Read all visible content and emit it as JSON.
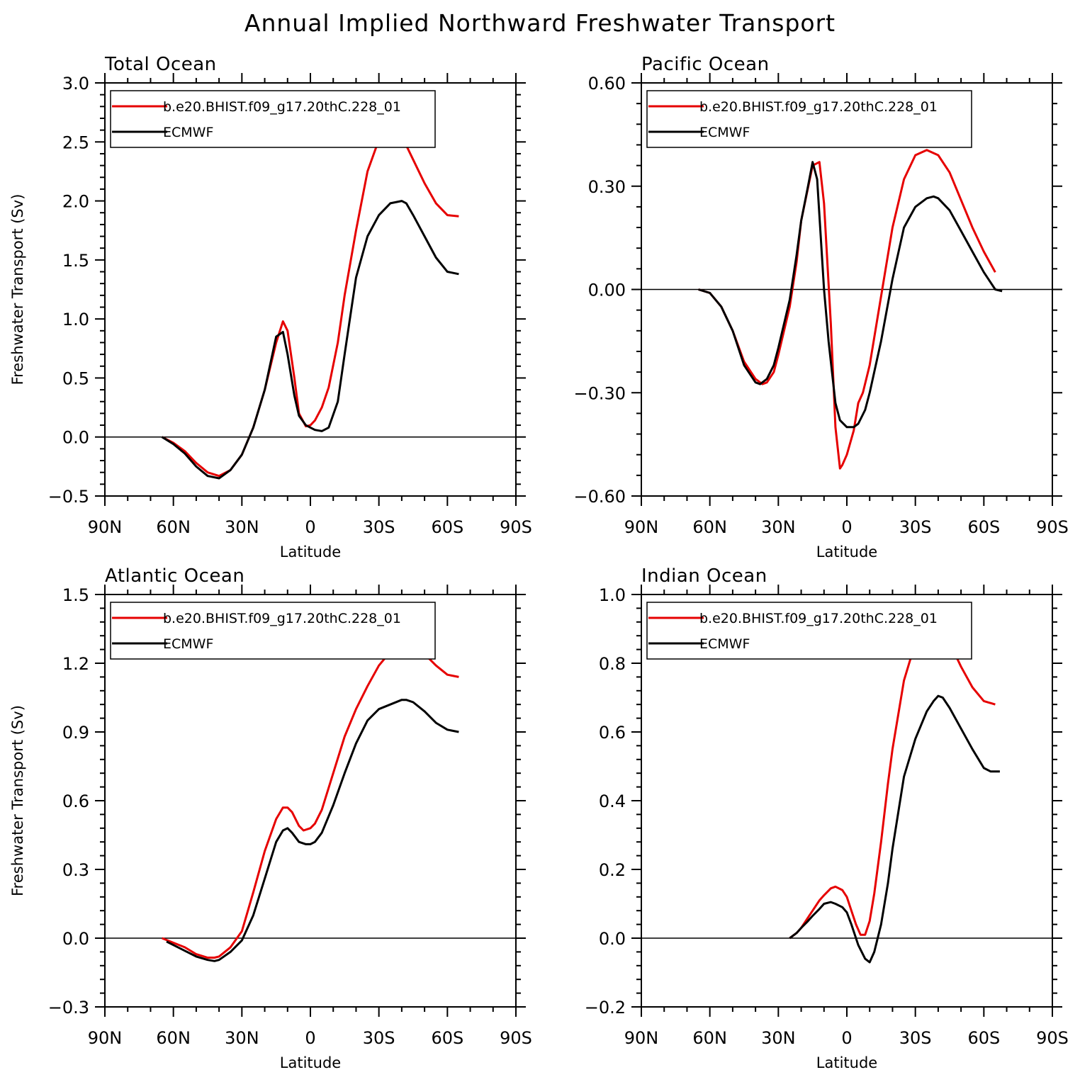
{
  "title": "Annual Implied Northward Freshwater Transport",
  "colors": {
    "model": "#e60000",
    "obs": "#000000"
  },
  "chart_data": [
    {
      "type": "line",
      "panel_title": "Total Ocean",
      "xlabel": "Latitude",
      "ylabel": "Freshwater Transport (Sv)",
      "xlim": [
        90,
        -90
      ],
      "ylim": [
        -0.5,
        3.0
      ],
      "x_ticks": [
        90,
        60,
        30,
        0,
        -30,
        -60,
        -90
      ],
      "x_tick_labels": [
        "90N",
        "60N",
        "30N",
        "0",
        "30S",
        "60S",
        "90S"
      ],
      "y_ticks": [
        -0.5,
        0.0,
        0.5,
        1.0,
        1.5,
        2.0,
        2.5,
        3.0
      ],
      "y_tick_labels": [
        "−0.5",
        "0.0",
        "0.5",
        "1.0",
        "1.5",
        "2.0",
        "2.5",
        "3.0"
      ],
      "series": [
        {
          "name": "b.e20.BHIST.f09_g17.20thC.228_01",
          "x": [
            65,
            60,
            55,
            50,
            45,
            40,
            35,
            30,
            25,
            20,
            15,
            12,
            10,
            7,
            5,
            2,
            0,
            -2,
            -5,
            -8,
            -12,
            -15,
            -20,
            -25,
            -30,
            -35,
            -40,
            -45,
            -50,
            -55,
            -60,
            -65
          ],
          "y": [
            0.0,
            -0.05,
            -0.12,
            -0.22,
            -0.3,
            -0.33,
            -0.28,
            -0.15,
            0.08,
            0.4,
            0.8,
            0.98,
            0.9,
            0.5,
            0.2,
            0.09,
            0.1,
            0.14,
            0.25,
            0.42,
            0.8,
            1.2,
            1.75,
            2.25,
            2.52,
            2.62,
            2.55,
            2.35,
            2.15,
            1.98,
            1.88,
            1.87
          ]
        },
        {
          "name": "ECMWF",
          "x": [
            65,
            60,
            55,
            50,
            45,
            40,
            35,
            30,
            25,
            20,
            15,
            12,
            10,
            7,
            5,
            2,
            0,
            -2,
            -5,
            -8,
            -12,
            -15,
            -20,
            -25,
            -30,
            -35,
            -40,
            -42,
            -45,
            -50,
            -55,
            -60,
            -65
          ],
          "y": [
            0.0,
            -0.06,
            -0.14,
            -0.25,
            -0.33,
            -0.35,
            -0.28,
            -0.15,
            0.08,
            0.4,
            0.85,
            0.89,
            0.7,
            0.35,
            0.18,
            0.1,
            0.08,
            0.06,
            0.05,
            0.08,
            0.3,
            0.7,
            1.35,
            1.7,
            1.88,
            1.98,
            2.0,
            1.98,
            1.88,
            1.7,
            1.52,
            1.4,
            1.38
          ]
        }
      ]
    },
    {
      "type": "line",
      "panel_title": "Pacific Ocean",
      "xlabel": "Latitude",
      "ylabel": "",
      "xlim": [
        90,
        -90
      ],
      "ylim": [
        -0.6,
        0.6
      ],
      "x_ticks": [
        90,
        60,
        30,
        0,
        -30,
        -60,
        -90
      ],
      "x_tick_labels": [
        "90N",
        "60N",
        "30N",
        "0",
        "30S",
        "60S",
        "90S"
      ],
      "y_ticks": [
        -0.6,
        -0.3,
        0.0,
        0.3,
        0.6
      ],
      "y_tick_labels": [
        "−0.60",
        "−0.30",
        "0.00",
        "0.30",
        "0.60"
      ],
      "series": [
        {
          "name": "b.e20.BHIST.f09_g17.20thC.228_01",
          "x": [
            65,
            60,
            55,
            50,
            45,
            40,
            37,
            35,
            32,
            30,
            25,
            22,
            20,
            15,
            12,
            10,
            7,
            5,
            3,
            2,
            0,
            -3,
            -5,
            -7,
            -10,
            -15,
            -20,
            -25,
            -30,
            -35,
            -40,
            -45,
            -50,
            -55,
            -60,
            -65
          ],
          "y": [
            0.0,
            -0.01,
            -0.05,
            -0.12,
            -0.21,
            -0.26,
            -0.275,
            -0.27,
            -0.24,
            -0.19,
            -0.05,
            0.08,
            0.2,
            0.36,
            0.37,
            0.25,
            -0.1,
            -0.4,
            -0.52,
            -0.51,
            -0.48,
            -0.41,
            -0.33,
            -0.3,
            -0.22,
            -0.02,
            0.18,
            0.32,
            0.39,
            0.405,
            0.39,
            0.34,
            0.26,
            0.18,
            0.11,
            0.05
          ]
        },
        {
          "name": "ECMWF",
          "x": [
            65,
            60,
            55,
            50,
            45,
            40,
            38,
            35,
            32,
            30,
            25,
            22,
            20,
            17,
            15,
            13,
            10,
            8,
            5,
            3,
            0,
            -3,
            -5,
            -8,
            -10,
            -15,
            -20,
            -25,
            -30,
            -35,
            -38,
            -40,
            -45,
            -50,
            -55,
            -60,
            -65,
            -68
          ],
          "y": [
            0.0,
            -0.01,
            -0.05,
            -0.12,
            -0.22,
            -0.27,
            -0.275,
            -0.26,
            -0.22,
            -0.17,
            -0.03,
            0.1,
            0.2,
            0.3,
            0.37,
            0.32,
            0.0,
            -0.15,
            -0.33,
            -0.38,
            -0.4,
            -0.4,
            -0.39,
            -0.35,
            -0.3,
            -0.15,
            0.03,
            0.18,
            0.24,
            0.265,
            0.27,
            0.265,
            0.23,
            0.17,
            0.11,
            0.05,
            0.0,
            -0.005
          ]
        }
      ]
    },
    {
      "type": "line",
      "panel_title": "Atlantic Ocean",
      "xlabel": "Latitude",
      "ylabel": "Freshwater Transport (Sv)",
      "xlim": [
        90,
        -90
      ],
      "ylim": [
        -0.3,
        1.5
      ],
      "x_ticks": [
        90,
        60,
        30,
        0,
        -30,
        -60,
        -90
      ],
      "x_tick_labels": [
        "90N",
        "60N",
        "30N",
        "0",
        "30S",
        "60S",
        "90S"
      ],
      "y_ticks": [
        -0.3,
        0.0,
        0.3,
        0.6,
        0.9,
        1.2,
        1.5
      ],
      "y_tick_labels": [
        "−0.3",
        "0.0",
        "0.3",
        "0.6",
        "0.9",
        "1.2",
        "1.5"
      ],
      "series": [
        {
          "name": "b.e20.BHIST.f09_g17.20thC.228_01",
          "x": [
            65,
            60,
            55,
            50,
            45,
            42,
            40,
            35,
            30,
            25,
            20,
            15,
            12,
            10,
            8,
            5,
            3,
            0,
            -2,
            -5,
            -10,
            -15,
            -20,
            -25,
            -30,
            -35,
            -40,
            -42,
            -45,
            -50,
            -55,
            -60,
            -65
          ],
          "y": [
            0.0,
            -0.02,
            -0.04,
            -0.07,
            -0.085,
            -0.085,
            -0.08,
            -0.04,
            0.03,
            0.2,
            0.38,
            0.52,
            0.57,
            0.57,
            0.55,
            0.49,
            0.47,
            0.48,
            0.5,
            0.56,
            0.72,
            0.88,
            1.0,
            1.1,
            1.19,
            1.25,
            1.29,
            1.3,
            1.29,
            1.24,
            1.19,
            1.15,
            1.14
          ]
        },
        {
          "name": "ECMWF",
          "x": [
            63,
            60,
            55,
            50,
            45,
            42,
            40,
            35,
            30,
            25,
            20,
            15,
            12,
            10,
            8,
            5,
            2,
            0,
            -2,
            -5,
            -10,
            -15,
            -20,
            -25,
            -30,
            -35,
            -40,
            -42,
            -45,
            -50,
            -55,
            -60,
            -65
          ],
          "y": [
            -0.015,
            -0.03,
            -0.055,
            -0.08,
            -0.095,
            -0.1,
            -0.095,
            -0.06,
            -0.01,
            0.1,
            0.26,
            0.42,
            0.47,
            0.48,
            0.46,
            0.42,
            0.41,
            0.41,
            0.42,
            0.46,
            0.58,
            0.72,
            0.85,
            0.95,
            1.0,
            1.02,
            1.04,
            1.04,
            1.03,
            0.99,
            0.94,
            0.91,
            0.9
          ]
        }
      ]
    },
    {
      "type": "line",
      "panel_title": "Indian Ocean",
      "xlabel": "Latitude",
      "ylabel": "",
      "xlim": [
        90,
        -90
      ],
      "ylim": [
        -0.2,
        1.0
      ],
      "x_ticks": [
        90,
        60,
        30,
        0,
        -30,
        -60,
        -90
      ],
      "x_tick_labels": [
        "90N",
        "60N",
        "30N",
        "0",
        "30S",
        "60S",
        "90S"
      ],
      "y_ticks": [
        -0.2,
        0.0,
        0.2,
        0.4,
        0.6,
        0.8,
        1.0
      ],
      "y_tick_labels": [
        "−0.2",
        "0.0",
        "0.2",
        "0.4",
        "0.6",
        "0.8",
        "1.0"
      ],
      "series": [
        {
          "name": "b.e20.BHIST.f09_g17.20thC.228_01",
          "x": [
            25,
            22,
            20,
            17,
            15,
            12,
            10,
            7,
            5,
            2,
            0,
            -2,
            -4,
            -6,
            -8,
            -10,
            -12,
            -15,
            -18,
            -20,
            -25,
            -30,
            -35,
            -38,
            -40,
            -42,
            -45,
            -50,
            -55,
            -60,
            -65
          ],
          "y": [
            0.0,
            0.015,
            0.03,
            0.06,
            0.08,
            0.11,
            0.125,
            0.145,
            0.15,
            0.14,
            0.12,
            0.08,
            0.04,
            0.01,
            0.01,
            0.05,
            0.13,
            0.28,
            0.45,
            0.55,
            0.75,
            0.86,
            0.91,
            0.92,
            0.915,
            0.9,
            0.86,
            0.79,
            0.73,
            0.69,
            0.68
          ]
        },
        {
          "name": "ECMWF",
          "x": [
            25,
            22,
            20,
            17,
            15,
            12,
            10,
            7,
            5,
            2,
            0,
            -2,
            -5,
            -8,
            -10,
            -12,
            -15,
            -18,
            -20,
            -25,
            -30,
            -35,
            -38,
            -40,
            -42,
            -45,
            -50,
            -55,
            -60,
            -63,
            -67
          ],
          "y": [
            0.0,
            0.015,
            0.03,
            0.05,
            0.065,
            0.085,
            0.1,
            0.105,
            0.1,
            0.09,
            0.075,
            0.04,
            -0.02,
            -0.06,
            -0.07,
            -0.04,
            0.04,
            0.16,
            0.26,
            0.47,
            0.58,
            0.66,
            0.69,
            0.705,
            0.7,
            0.67,
            0.61,
            0.55,
            0.495,
            0.485,
            0.485
          ]
        }
      ]
    }
  ]
}
